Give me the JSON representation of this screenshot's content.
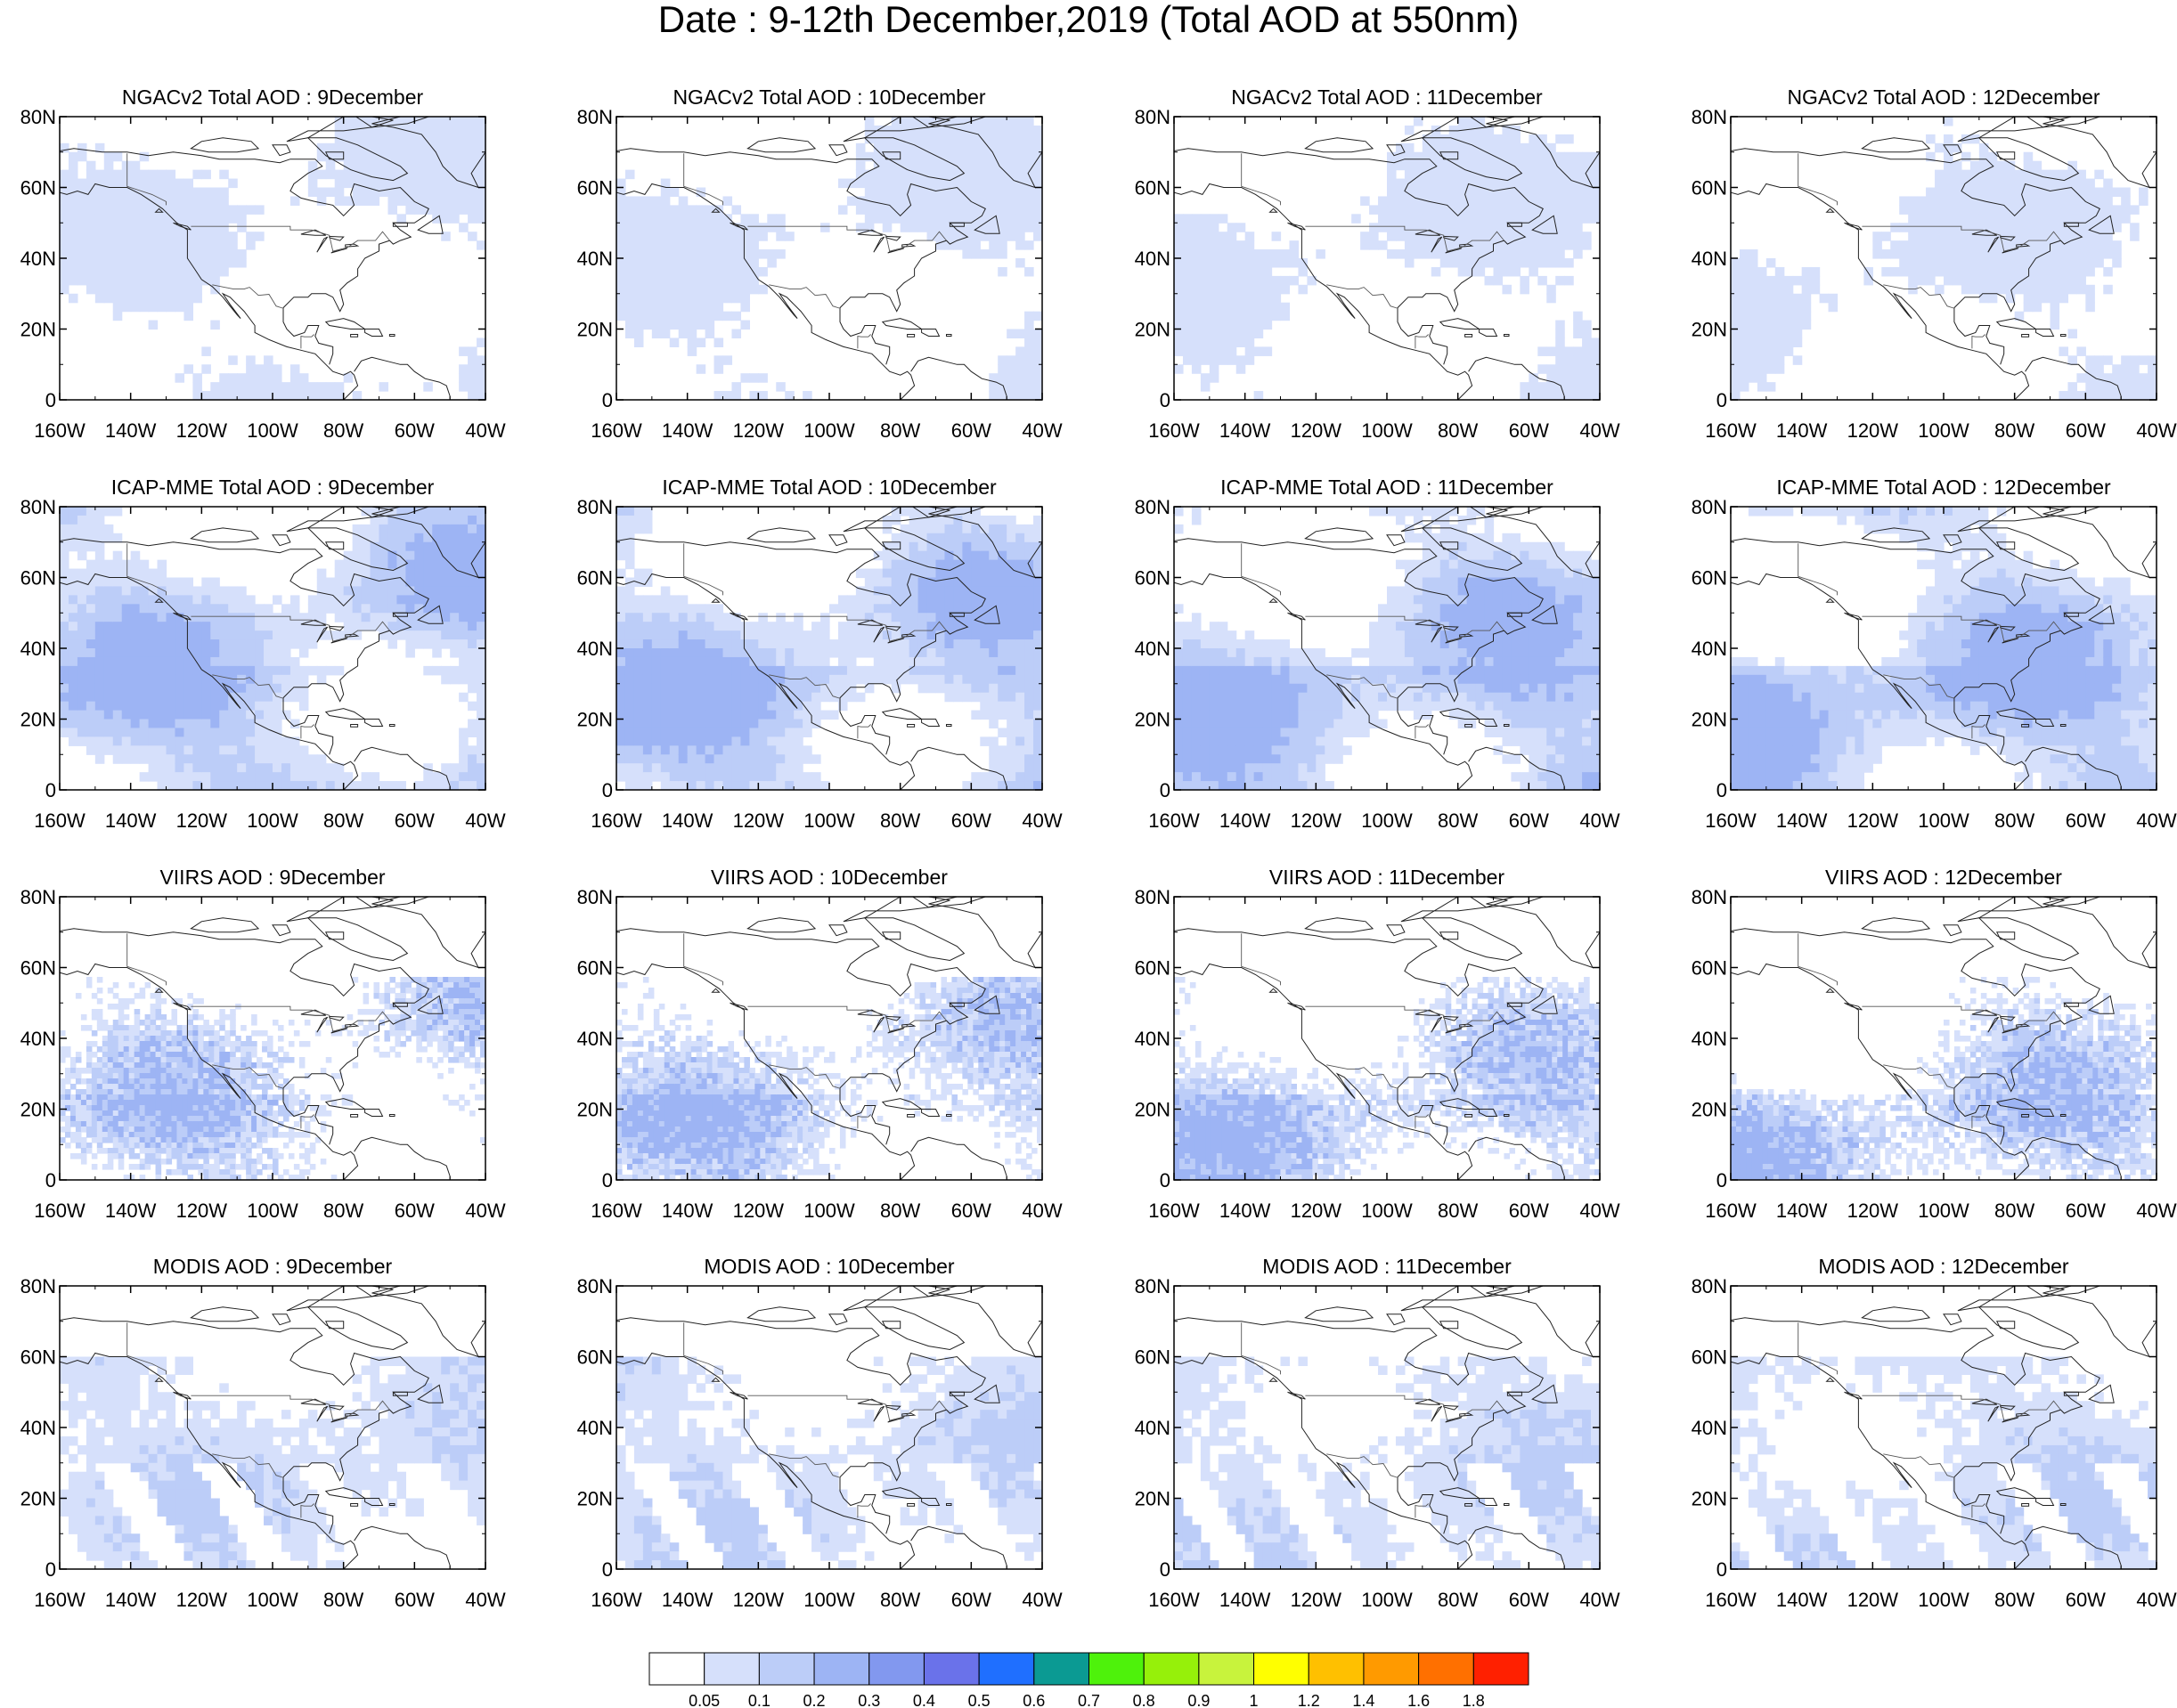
{
  "title": "Date : 9-12th December,2019 (Total AOD at 550nm)",
  "axes": {
    "lat_ticks": [
      "80N",
      "60N",
      "40N",
      "20N",
      "0"
    ],
    "lon_ticks": [
      "160W",
      "140W",
      "120W",
      "100W",
      "80W",
      "60W",
      "40W"
    ],
    "lat_range": [
      0,
      80
    ],
    "lon_range": [
      -160,
      -40
    ]
  },
  "panels": [
    {
      "title": "NGACv2 Total AOD : 9December",
      "model": "NGACv2",
      "day": 9
    },
    {
      "title": "NGACv2 Total AOD : 10December",
      "model": "NGACv2",
      "day": 10
    },
    {
      "title": "NGACv2 Total AOD : 11December",
      "model": "NGACv2",
      "day": 11
    },
    {
      "title": "NGACv2 Total AOD : 12December",
      "model": "NGACv2",
      "day": 12
    },
    {
      "title": "ICAP-MME Total AOD : 9December",
      "model": "ICAP-MME",
      "day": 9
    },
    {
      "title": "ICAP-MME Total AOD : 10December",
      "model": "ICAP-MME",
      "day": 10
    },
    {
      "title": "ICAP-MME Total AOD : 11December",
      "model": "ICAP-MME",
      "day": 11
    },
    {
      "title": "ICAP-MME Total AOD : 12December",
      "model": "ICAP-MME",
      "day": 12
    },
    {
      "title": "VIIRS AOD : 9December",
      "model": "VIIRS",
      "day": 9
    },
    {
      "title": "VIIRS AOD : 10December",
      "model": "VIIRS",
      "day": 10
    },
    {
      "title": "VIIRS AOD : 11December",
      "model": "VIIRS",
      "day": 11
    },
    {
      "title": "VIIRS AOD : 12December",
      "model": "VIIRS",
      "day": 12
    },
    {
      "title": "MODIS AOD : 9December",
      "model": "MODIS",
      "day": 9
    },
    {
      "title": "MODIS AOD : 10December",
      "model": "MODIS",
      "day": 10
    },
    {
      "title": "MODIS AOD : 11December",
      "model": "MODIS",
      "day": 11
    },
    {
      "title": "MODIS AOD : 12December",
      "model": "MODIS",
      "day": 12
    }
  ],
  "colorbar": {
    "labels": [
      "0.05",
      "0.1",
      "0.2",
      "0.3",
      "0.4",
      "0.5",
      "0.6",
      "0.7",
      "0.8",
      "0.9",
      "1",
      "1.2",
      "1.4",
      "1.6",
      "1.8"
    ],
    "colors": [
      "#ffffff",
      "#d6e0fb",
      "#bccdf8",
      "#9db4f4",
      "#8298ef",
      "#6a72ea",
      "#1f6fff",
      "#0b9a93",
      "#4ef20b",
      "#96f00a",
      "#c8f33c",
      "#ffff00",
      "#ffc000",
      "#ff9a00",
      "#ff7000",
      "#ff2000"
    ]
  }
}
